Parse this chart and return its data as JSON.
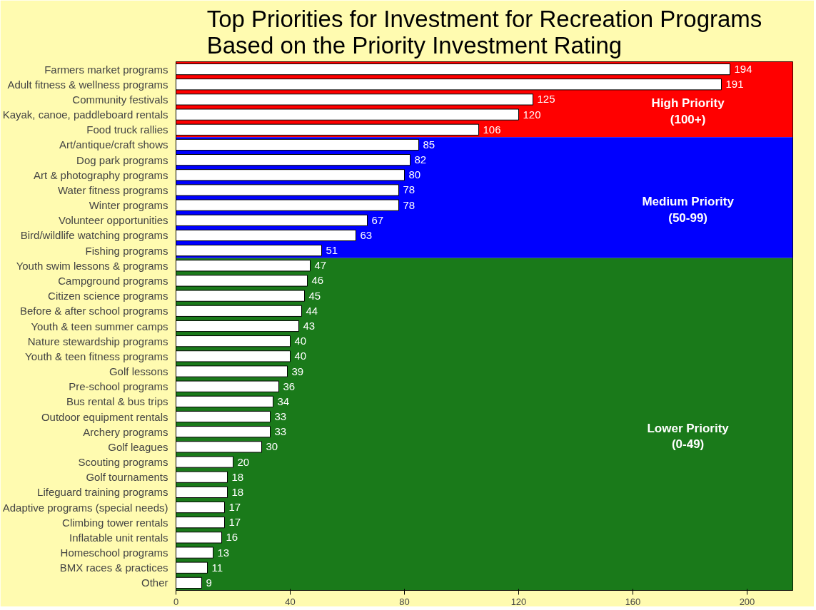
{
  "chart_data": {
    "type": "bar",
    "orientation": "horizontal",
    "title": "Top Priorities for Investment for Recreation Programs\nBased on the Priority Investment Rating",
    "categories": [
      "Farmers market programs",
      "Adult fitness & wellness programs",
      "Community festivals",
      "Kayak, canoe, paddleboard rentals",
      "Food truck rallies",
      "Art/antique/craft shows",
      "Dog park programs",
      "Art & photography programs",
      "Water fitness programs",
      "Winter programs",
      "Volunteer opportunities",
      "Bird/wildlife watching programs",
      "Fishing programs",
      "Youth swim lessons & programs",
      "Campground programs",
      "Citizen science programs",
      "Before & after school programs",
      "Youth & teen summer camps",
      "Nature stewardship programs",
      "Youth & teen fitness programs",
      "Golf lessons",
      "Pre-school programs",
      "Bus rental & bus trips",
      "Outdoor equipment rentals",
      "Archery programs",
      "Golf leagues",
      "Scouting programs",
      "Golf tournaments",
      "Lifeguard training programs",
      "Adaptive programs (special needs)",
      "Climbing tower rentals",
      "Inflatable unit rentals",
      "Homeschool programs",
      "BMX races & practices",
      "Other"
    ],
    "values": [
      194,
      191,
      125,
      120,
      106,
      85,
      82,
      80,
      78,
      78,
      67,
      63,
      51,
      47,
      46,
      45,
      44,
      43,
      40,
      40,
      39,
      36,
      34,
      33,
      33,
      30,
      20,
      18,
      18,
      17,
      17,
      16,
      13,
      11,
      9
    ],
    "color": "#ffffff",
    "data_labels": true,
    "xlim": [
      0,
      216
    ],
    "xticks": [
      0,
      40,
      80,
      120,
      160,
      200
    ],
    "grid": false,
    "bands": [
      {
        "axis": "y",
        "from": "Farmers market programs",
        "to": "Food truck rallies",
        "label": "High Priority\n(100+)",
        "color": "#ff0000"
      },
      {
        "axis": "y",
        "from": "Art/antique/craft shows",
        "to": "Fishing programs",
        "label": "Medium Priority\n(50-99)",
        "color": "#0000ff"
      },
      {
        "axis": "y",
        "from": "Youth swim lessons & programs",
        "to": "Other",
        "label": "Lower Priority\n(0-49)",
        "color": "#1a7a1a"
      }
    ]
  }
}
